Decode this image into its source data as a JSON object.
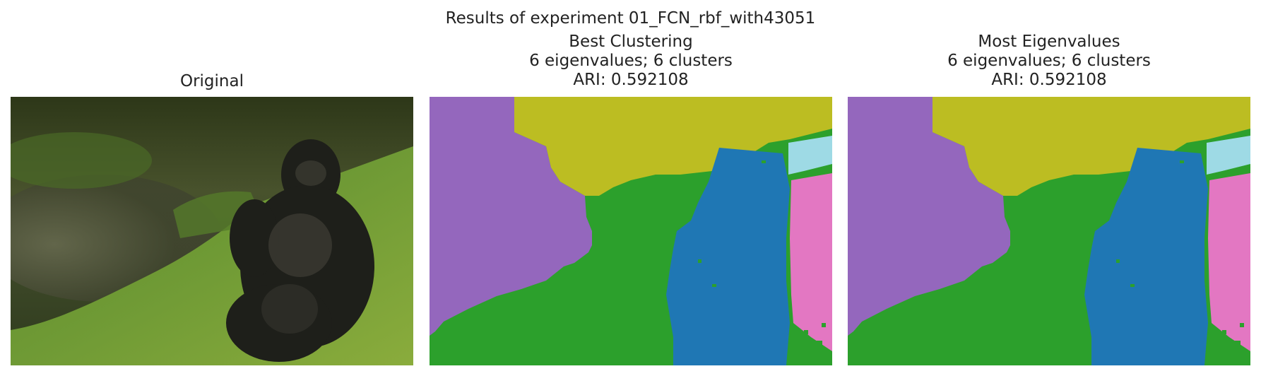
{
  "figure": {
    "suptitle": "Results of experiment 01_FCN_rbf_with43051"
  },
  "panels": [
    {
      "title_lines": [
        "Original"
      ],
      "content": "photo"
    },
    {
      "title_lines": [
        "Best Clustering",
        "6 eigenvalues; 6 clusters",
        "ARI: 0.592108"
      ],
      "content": "segmentation"
    },
    {
      "title_lines": [
        "Most Eigenvalues",
        "6 eigenvalues; 6 clusters",
        "ARI: 0.592108"
      ],
      "content": "segmentation"
    }
  ],
  "cluster_colors": {
    "purple": "#9467bd",
    "olive": "#bcbd22",
    "green": "#2ca02c",
    "blue": "#1f77b4",
    "cyan": "#9edae5",
    "pink": "#e377c2"
  }
}
